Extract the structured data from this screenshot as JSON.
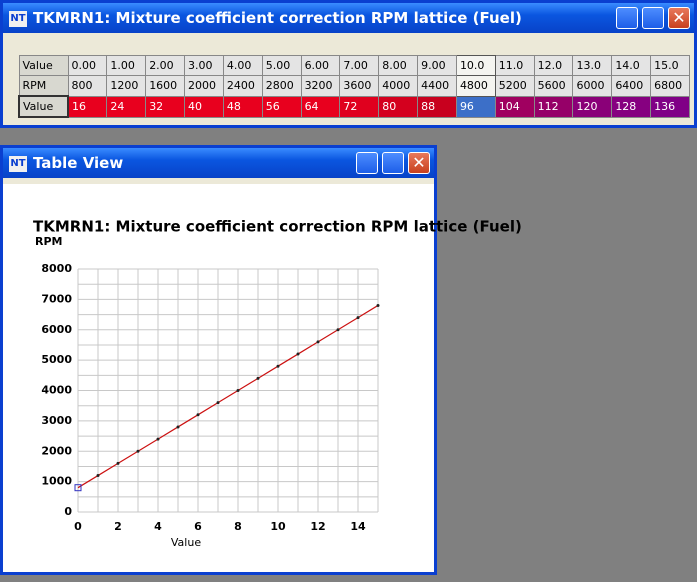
{
  "main_window": {
    "title": "TKMRN1: Mixture coefficient correction RPM lattice (Fuel)",
    "table": {
      "row_headers": [
        "Value",
        "RPM",
        "Value"
      ],
      "rows": [
        [
          "0.00",
          "1.00",
          "2.00",
          "3.00",
          "4.00",
          "5.00",
          "6.00",
          "7.00",
          "8.00",
          "9.00",
          "10.0",
          "11.0",
          "12.0",
          "13.0",
          "14.0",
          "15.0"
        ],
        [
          800,
          1200,
          1600,
          2000,
          2400,
          2800,
          3200,
          3600,
          4000,
          4400,
          4800,
          5200,
          5600,
          6000,
          6400,
          6800
        ],
        [
          16,
          24,
          32,
          40,
          48,
          56,
          64,
          72,
          80,
          88,
          96,
          104,
          112,
          120,
          128,
          136
        ]
      ],
      "cell_colors": [
        "#e8001e",
        "#e8001e",
        "#e8001e",
        "#e8001e",
        "#e8001e",
        "#e8001e",
        "#e8001e",
        "#e0001e",
        "#d4001e",
        "#c8001e",
        "#3c6fc8",
        "#a00060",
        "#960068",
        "#8a0078",
        "#860080",
        "#800086"
      ],
      "selected_column": 10
    }
  },
  "chart_window": {
    "title": "Table View"
  },
  "chart_data": {
    "type": "line",
    "title": "TKMRN1: Mixture coefficient correction RPM lattice (Fuel)",
    "xlabel": "Value",
    "ylabel": "RPM",
    "x": [
      0,
      1,
      2,
      3,
      4,
      5,
      6,
      7,
      8,
      9,
      10,
      11,
      12,
      13,
      14,
      15
    ],
    "series": [
      {
        "color": "#cc1111",
        "values": [
          800,
          1200,
          1600,
          2000,
          2400,
          2800,
          3200,
          3600,
          4000,
          4400,
          4800,
          5200,
          5600,
          6000,
          6400,
          6800
        ]
      }
    ],
    "xlim": [
      0,
      15
    ],
    "ylim": [
      0,
      8000
    ],
    "xticks": [
      0,
      2,
      4,
      6,
      8,
      10,
      12,
      14
    ],
    "yticks": [
      0,
      1000,
      2000,
      3000,
      4000,
      5000,
      6000,
      7000,
      8000
    ],
    "xgrid": [
      0,
      1,
      2,
      3,
      4,
      5,
      6,
      7,
      8,
      9,
      10,
      11,
      12,
      13,
      14,
      15
    ],
    "ygrid": [
      0,
      500,
      1000,
      1500,
      2000,
      2500,
      3000,
      3500,
      4000,
      4500,
      5000,
      5500,
      6000,
      6500,
      7000,
      7500,
      8000
    ],
    "grid": true
  }
}
